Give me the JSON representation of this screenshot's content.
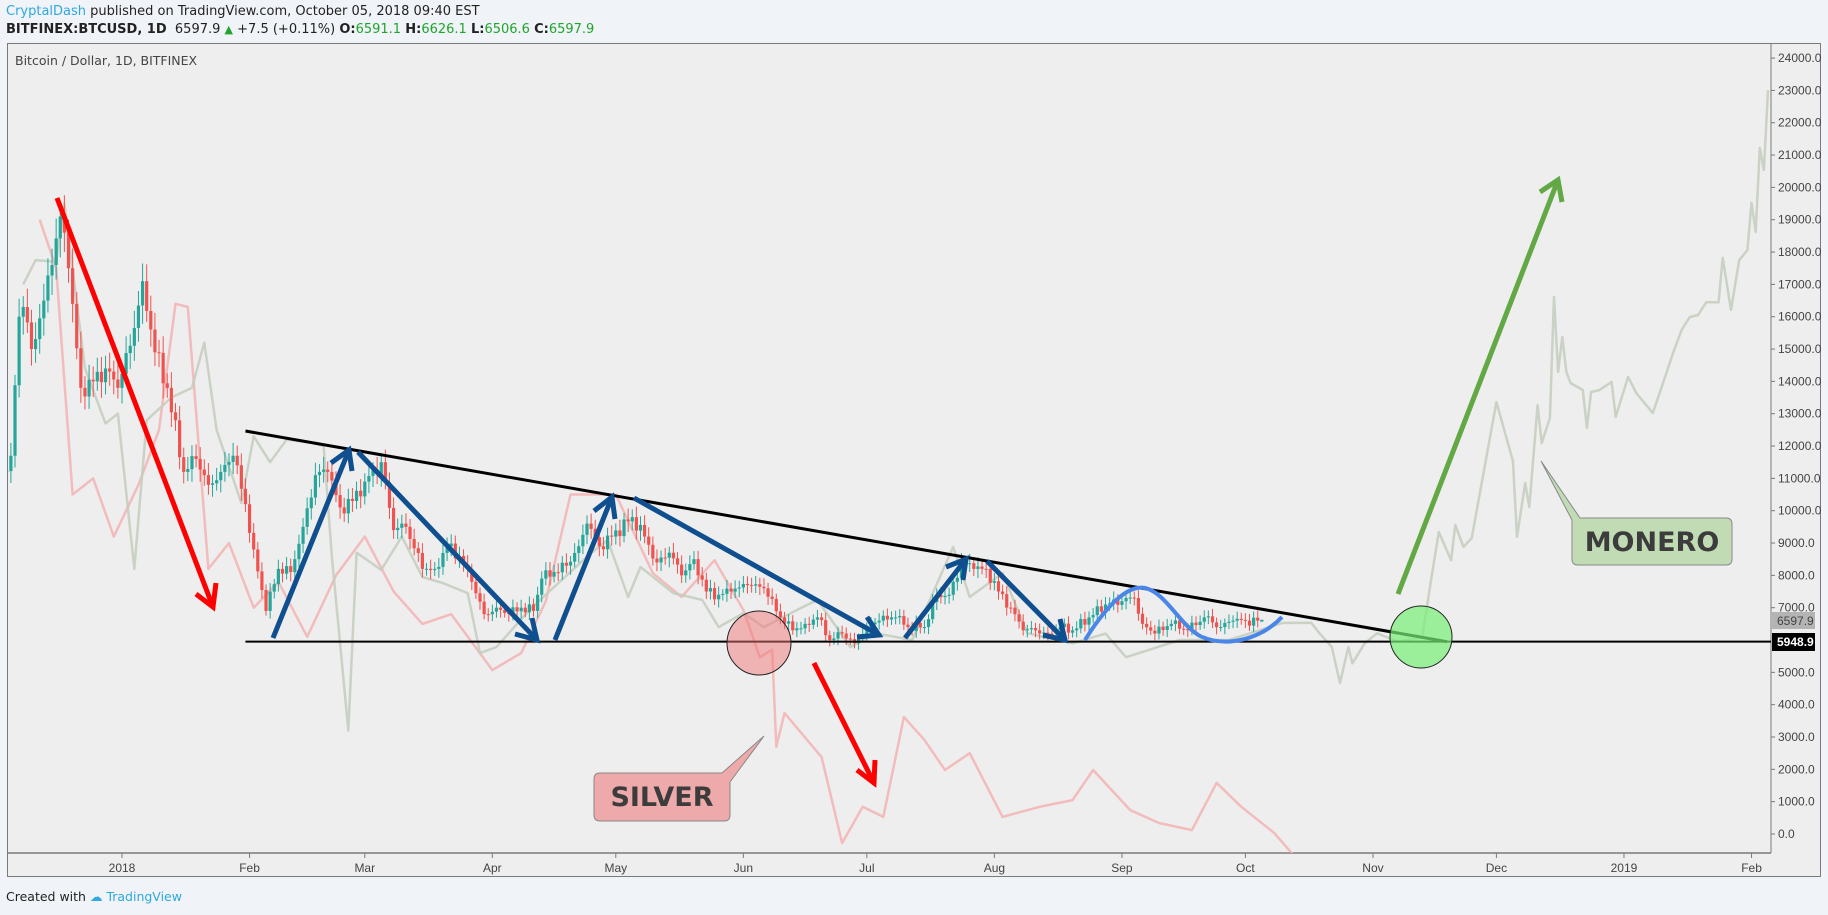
{
  "header": {
    "author": "CryptalDash",
    "published": "published on TradingView.com, October 05, 2018 09:40 EST",
    "symbol": "BITFINEX:BTCUSD, 1D",
    "last": "6597.9",
    "change": "+7.5 (+0.11%)",
    "o_label": "O:",
    "o": "6591.1",
    "h_label": "H:",
    "h": "6626.1",
    "l_label": "L:",
    "l": "6506.6",
    "c_label": "C:",
    "c": "6597.9",
    "up_icon": "triangle-up-icon"
  },
  "footer": {
    "created_with": "Created with",
    "brand": "TradingView"
  },
  "colors": {
    "up": "#26a69a",
    "down": "#ef5350",
    "silver": "#f3b3b3",
    "monero": "#c3cdbd",
    "trendline": "#000000",
    "arrow_blue": "#0f4f8f",
    "arrow_red": "#ff0000",
    "arrow_green": "#62a844",
    "curve": "#4a86e8"
  },
  "chart_data": {
    "type": "candlestick",
    "title": "Bitcoin / Dollar, 1D, BITFINEX",
    "ylim": [
      -1000,
      24800
    ],
    "xlim": [
      "2017-12-02",
      "2019-02-09"
    ],
    "grid": false,
    "y_ticks": [
      "24000.0",
      "23000.0",
      "22000.0",
      "21000.0",
      "20000.0",
      "19000.0",
      "18000.0",
      "17000.0",
      "16000.0",
      "15000.0",
      "14000.0",
      "13000.0",
      "12000.0",
      "11000.0",
      "10000.0",
      "9000.0",
      "8000.0",
      "7000.0",
      "5000.0",
      "4000.0",
      "3000.0",
      "2000.0",
      "1000.0",
      "0.0"
    ],
    "x_ticks": [
      {
        "label": "2018",
        "date": "2018-01-01"
      },
      {
        "label": "Feb",
        "date": "2018-02-01"
      },
      {
        "label": "Mar",
        "date": "2018-03-01"
      },
      {
        "label": "Apr",
        "date": "2018-04-01"
      },
      {
        "label": "May",
        "date": "2018-05-01"
      },
      {
        "label": "Jun",
        "date": "2018-06-01"
      },
      {
        "label": "Jul",
        "date": "2018-07-01"
      },
      {
        "label": "Aug",
        "date": "2018-08-01"
      },
      {
        "label": "Sep",
        "date": "2018-09-01"
      },
      {
        "label": "Oct",
        "date": "2018-10-01"
      },
      {
        "label": "Nov",
        "date": "2018-11-01"
      },
      {
        "label": "Dec",
        "date": "2018-12-01"
      },
      {
        "label": "2019",
        "date": "2019-01-01"
      },
      {
        "label": "Feb",
        "date": "2019-02-01"
      }
    ],
    "price_labels": {
      "last": "6597.9",
      "support": "5948.9"
    },
    "btc_closes": [
      [
        "2017-12-02",
        10900
      ],
      [
        "2017-12-05",
        11700
      ],
      [
        "2017-12-07",
        16000
      ],
      [
        "2017-12-08",
        16300
      ],
      [
        "2017-12-10",
        15000
      ],
      [
        "2017-12-13",
        16500
      ],
      [
        "2017-12-15",
        17600
      ],
      [
        "2017-12-17",
        19100
      ],
      [
        "2017-12-19",
        17500
      ],
      [
        "2017-12-22",
        13800
      ],
      [
        "2017-12-25",
        14000
      ],
      [
        "2017-12-28",
        14400
      ],
      [
        "2017-12-31",
        13800
      ],
      [
        "2018-01-03",
        15100
      ],
      [
        "2018-01-06",
        17100
      ],
      [
        "2018-01-09",
        14900
      ],
      [
        "2018-01-12",
        13800
      ],
      [
        "2018-01-16",
        11200
      ],
      [
        "2018-01-19",
        11600
      ],
      [
        "2018-01-22",
        10800
      ],
      [
        "2018-01-25",
        11200
      ],
      [
        "2018-01-28",
        11700
      ],
      [
        "2018-01-31",
        10200
      ],
      [
        "2018-02-02",
        8800
      ],
      [
        "2018-02-05",
        6900
      ],
      [
        "2018-02-08",
        8200
      ],
      [
        "2018-02-11",
        8100
      ],
      [
        "2018-02-14",
        9500
      ],
      [
        "2018-02-17",
        11100
      ],
      [
        "2018-02-20",
        11200
      ],
      [
        "2018-02-23",
        10100
      ],
      [
        "2018-02-26",
        10300
      ],
      [
        "2018-03-01",
        10900
      ],
      [
        "2018-03-05",
        11500
      ],
      [
        "2018-03-08",
        9400
      ],
      [
        "2018-03-11",
        9500
      ],
      [
        "2018-03-15",
        8200
      ],
      [
        "2018-03-18",
        8200
      ],
      [
        "2018-03-21",
        8900
      ],
      [
        "2018-03-24",
        8600
      ],
      [
        "2018-03-27",
        7800
      ],
      [
        "2018-03-30",
        6800
      ],
      [
        "2018-04-02",
        7000
      ],
      [
        "2018-04-05",
        6800
      ],
      [
        "2018-04-08",
        7000
      ],
      [
        "2018-04-11",
        6900
      ],
      [
        "2018-04-13",
        7900
      ],
      [
        "2018-04-16",
        8100
      ],
      [
        "2018-04-19",
        8300
      ],
      [
        "2018-04-22",
        8900
      ],
      [
        "2018-04-24",
        9600
      ],
      [
        "2018-04-27",
        8900
      ],
      [
        "2018-04-30",
        9200
      ],
      [
        "2018-05-05",
        9800
      ],
      [
        "2018-05-08",
        9200
      ],
      [
        "2018-05-11",
        8400
      ],
      [
        "2018-05-14",
        8700
      ],
      [
        "2018-05-17",
        8000
      ],
      [
        "2018-05-20",
        8500
      ],
      [
        "2018-05-23",
        7500
      ],
      [
        "2018-05-26",
        7400
      ],
      [
        "2018-05-29",
        7500
      ],
      [
        "2018-06-02",
        7700
      ],
      [
        "2018-06-06",
        7600
      ],
      [
        "2018-06-10",
        6700
      ],
      [
        "2018-06-13",
        6300
      ],
      [
        "2018-06-16",
        6500
      ],
      [
        "2018-06-19",
        6700
      ],
      [
        "2018-06-22",
        6000
      ],
      [
        "2018-06-25",
        6200
      ],
      [
        "2018-06-28",
        5900
      ],
      [
        "2018-07-01",
        6400
      ],
      [
        "2018-07-04",
        6600
      ],
      [
        "2018-07-08",
        6700
      ],
      [
        "2018-07-11",
        6400
      ],
      [
        "2018-07-15",
        6400
      ],
      [
        "2018-07-18",
        7400
      ],
      [
        "2018-07-21",
        7400
      ],
      [
        "2018-07-24",
        8400
      ],
      [
        "2018-07-27",
        8200
      ],
      [
        "2018-07-30",
        8200
      ],
      [
        "2018-08-02",
        7500
      ],
      [
        "2018-08-05",
        7000
      ],
      [
        "2018-08-08",
        6300
      ],
      [
        "2018-08-11",
        6300
      ],
      [
        "2018-08-14",
        6200
      ],
      [
        "2018-08-17",
        6400
      ],
      [
        "2018-08-20",
        6300
      ],
      [
        "2018-08-24",
        6700
      ],
      [
        "2018-08-28",
        7100
      ],
      [
        "2018-09-01",
        7200
      ],
      [
        "2018-09-04",
        7300
      ],
      [
        "2018-09-06",
        6500
      ],
      [
        "2018-09-09",
        6200
      ],
      [
        "2018-09-13",
        6500
      ],
      [
        "2018-09-17",
        6300
      ],
      [
        "2018-09-21",
        6700
      ],
      [
        "2018-09-25",
        6400
      ],
      [
        "2018-09-28",
        6600
      ],
      [
        "2018-10-01",
        6600
      ],
      [
        "2018-10-05",
        6598
      ]
    ],
    "overlays": [
      {
        "name": "SILVER",
        "color_key": "silver",
        "points": [
          [
            "2017-12-12",
            19000
          ],
          [
            "2017-12-16",
            17500
          ],
          [
            "2017-12-20",
            10500
          ],
          [
            "2017-12-25",
            11000
          ],
          [
            "2017-12-30",
            9200
          ],
          [
            "2018-01-05",
            10800
          ],
          [
            "2018-01-10",
            12500
          ],
          [
            "2018-01-14",
            16400
          ],
          [
            "2018-01-17",
            16300
          ],
          [
            "2018-01-22",
            8200
          ],
          [
            "2018-01-27",
            9000
          ],
          [
            "2018-02-02",
            7000
          ],
          [
            "2018-02-08",
            7800
          ],
          [
            "2018-02-15",
            6100
          ],
          [
            "2018-02-22",
            8000
          ],
          [
            "2018-03-01",
            9200
          ],
          [
            "2018-03-08",
            7500
          ],
          [
            "2018-03-15",
            6500
          ],
          [
            "2018-03-22",
            6800
          ],
          [
            "2018-04-01",
            5070
          ],
          [
            "2018-04-08",
            5600
          ],
          [
            "2018-04-14",
            7200
          ],
          [
            "2018-04-20",
            10500
          ],
          [
            "2018-05-01",
            10500
          ],
          [
            "2018-05-10",
            8070
          ],
          [
            "2018-05-17",
            7330
          ],
          [
            "2018-05-25",
            8470
          ],
          [
            "2018-06-01",
            6930
          ],
          [
            "2018-06-05",
            5470
          ],
          [
            "2018-06-08",
            5700
          ],
          [
            "2018-06-09",
            2700
          ],
          [
            "2018-06-11",
            3740
          ],
          [
            "2018-06-20",
            2380
          ],
          [
            "2018-06-25",
            -280
          ],
          [
            "2018-06-30",
            840
          ],
          [
            "2018-07-05",
            530
          ],
          [
            "2018-07-10",
            3620
          ],
          [
            "2018-07-15",
            2910
          ],
          [
            "2018-07-20",
            1980
          ],
          [
            "2018-07-26",
            2500
          ],
          [
            "2018-08-03",
            530
          ],
          [
            "2018-08-12",
            840
          ],
          [
            "2018-08-20",
            1050
          ],
          [
            "2018-08-25",
            1980
          ],
          [
            "2018-09-03",
            740
          ],
          [
            "2018-09-10",
            340
          ],
          [
            "2018-09-18",
            120
          ],
          [
            "2018-09-24",
            1580
          ],
          [
            "2018-09-30",
            840
          ],
          [
            "2018-10-08",
            30
          ],
          [
            "2018-10-13",
            -700
          ]
        ]
      },
      {
        "name": "MONERO",
        "color_key": "monero",
        "points": [
          [
            "2017-12-08",
            17000
          ],
          [
            "2017-12-11",
            17750
          ],
          [
            "2017-12-16",
            17700
          ],
          [
            "2017-12-18",
            19500
          ],
          [
            "2017-12-23",
            14400
          ],
          [
            "2017-12-28",
            12700
          ],
          [
            "2017-12-31",
            13000
          ],
          [
            "2018-01-04",
            8200
          ],
          [
            "2018-01-07",
            12800
          ],
          [
            "2018-01-13",
            13500
          ],
          [
            "2018-01-18",
            13800
          ],
          [
            "2018-01-21",
            15200
          ],
          [
            "2018-01-24",
            12500
          ],
          [
            "2018-01-30",
            10240
          ],
          [
            "2018-02-02",
            12300
          ],
          [
            "2018-02-06",
            11500
          ],
          [
            "2018-02-10",
            12200
          ],
          [
            "2018-02-16",
            12100
          ],
          [
            "2018-02-19",
            12000
          ],
          [
            "2018-02-21",
            8570
          ],
          [
            "2018-02-25",
            3200
          ],
          [
            "2018-02-27",
            8700
          ],
          [
            "2018-03-05",
            8170
          ],
          [
            "2018-03-10",
            9200
          ],
          [
            "2018-03-15",
            7950
          ],
          [
            "2018-03-20",
            7760
          ],
          [
            "2018-03-26",
            7450
          ],
          [
            "2018-03-29",
            5600
          ],
          [
            "2018-04-02",
            5780
          ],
          [
            "2018-04-10",
            6930
          ],
          [
            "2018-04-16",
            7640
          ],
          [
            "2018-04-25",
            8690
          ],
          [
            "2018-04-29",
            9090
          ],
          [
            "2018-05-04",
            7330
          ],
          [
            "2018-05-07",
            8260
          ],
          [
            "2018-05-15",
            7450
          ],
          [
            "2018-05-22",
            7240
          ],
          [
            "2018-05-26",
            6400
          ],
          [
            "2018-06-01",
            6830
          ],
          [
            "2018-06-06",
            6400
          ],
          [
            "2018-06-14",
            6930
          ],
          [
            "2018-06-19",
            7240
          ],
          [
            "2018-06-27",
            5780
          ],
          [
            "2018-07-03",
            6210
          ],
          [
            "2018-07-12",
            6000
          ],
          [
            "2018-07-22",
            8880
          ],
          [
            "2018-07-26",
            7330
          ],
          [
            "2018-08-03",
            8070
          ],
          [
            "2018-08-09",
            6210
          ],
          [
            "2018-08-20",
            5900
          ],
          [
            "2018-08-28",
            6200
          ],
          [
            "2018-09-02",
            5470
          ],
          [
            "2018-09-15",
            6000
          ],
          [
            "2018-09-27",
            6000
          ],
          [
            "2018-10-10",
            6530
          ],
          [
            "2018-10-17",
            6530
          ],
          [
            "2018-10-19",
            6210
          ],
          [
            "2018-10-22",
            5780
          ],
          [
            "2018-10-24",
            4670
          ],
          [
            "2018-10-26",
            5780
          ],
          [
            "2018-10-27",
            5280
          ],
          [
            "2018-10-30",
            5900
          ],
          [
            "2018-11-02",
            6210
          ],
          [
            "2018-11-07",
            5950
          ],
          [
            "2018-11-13",
            6090
          ],
          [
            "2018-11-15",
            7760
          ],
          [
            "2018-11-17",
            9340
          ],
          [
            "2018-11-20",
            8470
          ],
          [
            "2018-11-21",
            9560
          ],
          [
            "2018-11-23",
            8880
          ],
          [
            "2018-11-25",
            9150
          ],
          [
            "2018-12-01",
            13360
          ],
          [
            "2018-12-05",
            11540
          ],
          [
            "2018-12-06",
            9190
          ],
          [
            "2018-12-08",
            10860
          ],
          [
            "2018-12-09",
            10110
          ],
          [
            "2018-12-11",
            13270
          ],
          [
            "2018-12-12",
            12090
          ],
          [
            "2018-12-14",
            12870
          ],
          [
            "2018-12-15",
            16610
          ],
          [
            "2018-12-16",
            14290
          ],
          [
            "2018-12-17",
            15370
          ],
          [
            "2018-12-18",
            14290
          ],
          [
            "2018-12-19",
            13950
          ],
          [
            "2018-12-22",
            13730
          ],
          [
            "2018-12-23",
            12560
          ],
          [
            "2018-12-24",
            13670
          ],
          [
            "2018-12-26",
            13730
          ],
          [
            "2018-12-29",
            13980
          ],
          [
            "2018-12-30",
            12900
          ],
          [
            "2019-01-02",
            14140
          ],
          [
            "2019-01-04",
            13640
          ],
          [
            "2019-01-08",
            13020
          ],
          [
            "2019-01-11",
            14140
          ],
          [
            "2019-01-13",
            14910
          ],
          [
            "2019-01-15",
            15590
          ],
          [
            "2019-01-17",
            15990
          ],
          [
            "2019-01-19",
            16050
          ],
          [
            "2019-01-21",
            16450
          ],
          [
            "2019-01-24",
            16450
          ],
          [
            "2019-01-25",
            17820
          ],
          [
            "2019-01-27",
            16210
          ],
          [
            "2019-01-28",
            16980
          ],
          [
            "2019-01-29",
            17750
          ],
          [
            "2019-01-31",
            18060
          ],
          [
            "2019-02-01",
            19520
          ],
          [
            "2019-02-02",
            18620
          ],
          [
            "2019-02-03",
            21220
          ],
          [
            "2019-02-04",
            20540
          ],
          [
            "2019-02-05",
            23010
          ]
        ]
      }
    ],
    "trendlines": {
      "resistance": [
        [
          "2018-01-31",
          12465
        ],
        [
          "2018-11-19",
          5949
        ]
      ],
      "support": 5948.9
    },
    "annotations": {
      "silver_label": "SILVER",
      "monero_label": "MONERO"
    }
  }
}
